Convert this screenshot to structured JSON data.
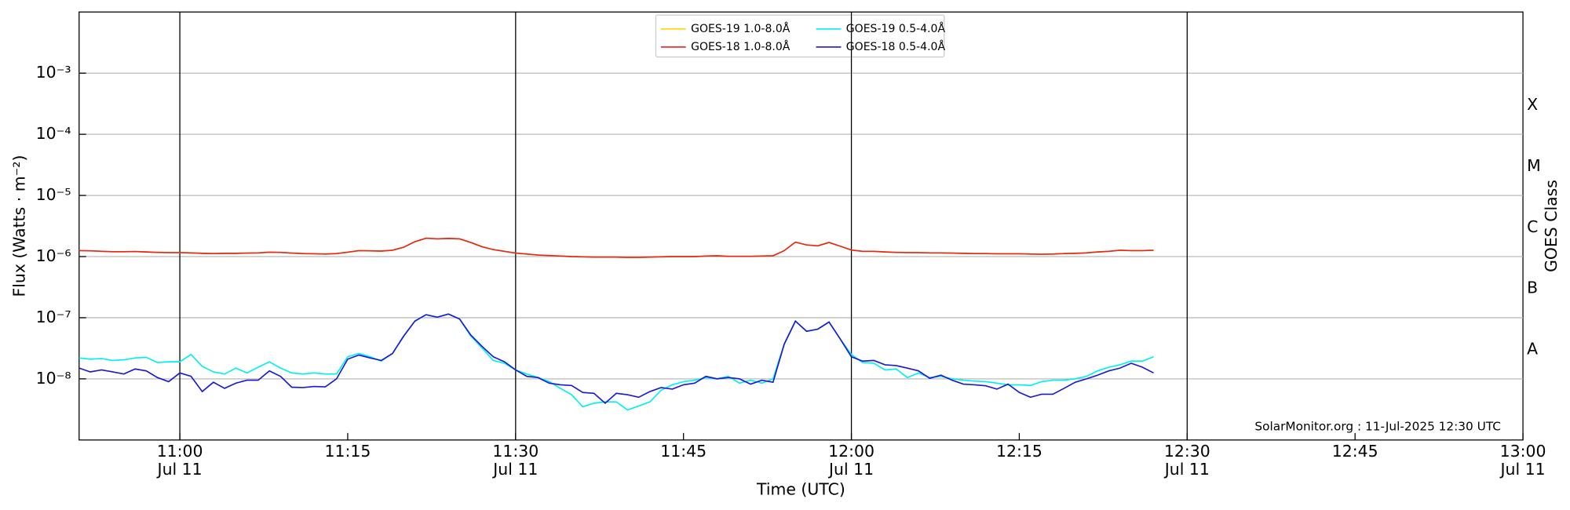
{
  "chart_data": {
    "type": "line",
    "y_label": "Flux (Watts · m⁻²)",
    "x_label": "Time (UTC)",
    "y2_label": "GOES Class",
    "annotation": "SolarMonitor.org : 11-Jul-2025 12:30 UTC",
    "log_y": true,
    "grid": true,
    "legend": "upper center",
    "x": [
      "10:51",
      "10:52",
      "10:53",
      "10:54",
      "10:55",
      "10:56",
      "10:57",
      "10:58",
      "10:59",
      "11:00",
      "11:01",
      "11:02",
      "11:03",
      "11:04",
      "11:05",
      "11:06",
      "11:07",
      "11:08",
      "11:09",
      "11:10",
      "11:11",
      "11:12",
      "11:13",
      "11:14",
      "11:15",
      "11:16",
      "11:17",
      "11:18",
      "11:19",
      "11:20",
      "11:21",
      "11:22",
      "11:23",
      "11:24",
      "11:25",
      "11:26",
      "11:27",
      "11:28",
      "11:29",
      "11:30",
      "11:31",
      "11:32",
      "11:33",
      "11:34",
      "11:35",
      "11:36",
      "11:37",
      "11:38",
      "11:39",
      "11:40",
      "11:41",
      "11:42",
      "11:43",
      "11:44",
      "11:45",
      "11:46",
      "11:47",
      "11:48",
      "11:49",
      "11:50",
      "11:51",
      "11:52",
      "11:53",
      "11:54",
      "11:55",
      "11:56",
      "11:57",
      "11:58",
      "11:59",
      "12:00",
      "12:01",
      "12:02",
      "12:03",
      "12:04",
      "12:05",
      "12:06",
      "12:07",
      "12:08",
      "12:09",
      "12:10",
      "12:11",
      "12:12",
      "12:13",
      "12:14",
      "12:15",
      "12:16",
      "12:17",
      "12:18",
      "12:19",
      "12:20",
      "12:21",
      "12:22",
      "12:23",
      "12:24",
      "12:25",
      "12:26",
      "12:27"
    ],
    "series": [
      {
        "name": "GOES-19 1.0-8.0Å",
        "color": "#ffd700",
        "values": [
          1.25e-06,
          1.24e-06,
          1.22e-06,
          1.2e-06,
          1.2e-06,
          1.21e-06,
          1.19e-06,
          1.17e-06,
          1.16e-06,
          1.16e-06,
          1.15e-06,
          1.13e-06,
          1.12e-06,
          1.13e-06,
          1.13e-06,
          1.14e-06,
          1.15e-06,
          1.18e-06,
          1.17e-06,
          1.14e-06,
          1.12e-06,
          1.11e-06,
          1.1e-06,
          1.12e-06,
          1.18e-06,
          1.25e-06,
          1.24e-06,
          1.23e-06,
          1.27e-06,
          1.42e-06,
          1.75e-06,
          2e-06,
          1.95e-06,
          1.98e-06,
          1.95e-06,
          1.7e-06,
          1.45e-06,
          1.3e-06,
          1.22e-06,
          1.14e-06,
          1.1e-06,
          1.06e-06,
          1.04e-06,
          1.02e-06,
          1e-06,
          9.9e-07,
          9.8e-07,
          9.8e-07,
          9.8e-07,
          9.7e-07,
          9.7e-07,
          9.8e-07,
          9.9e-07,
          1e-06,
          1e-06,
          1e-06,
          1.02e-06,
          1.03e-06,
          1.01e-06,
          1.01e-06,
          1.01e-06,
          1.02e-06,
          1.03e-06,
          1.25e-06,
          1.72e-06,
          1.55e-06,
          1.5e-06,
          1.7e-06,
          1.48e-06,
          1.28e-06,
          1.22e-06,
          1.22e-06,
          1.19e-06,
          1.17e-06,
          1.16e-06,
          1.16e-06,
          1.15e-06,
          1.15e-06,
          1.14e-06,
          1.13e-06,
          1.12e-06,
          1.12e-06,
          1.11e-06,
          1.11e-06,
          1.11e-06,
          1.1e-06,
          1.09e-06,
          1.1e-06,
          1.12e-06,
          1.13e-06,
          1.15e-06,
          1.19e-06,
          1.22e-06,
          1.27e-06,
          1.25e-06,
          1.25e-06,
          1.27e-06
        ]
      },
      {
        "name": "GOES-18 1.0-8.0Å",
        "color": "#e8251b",
        "values": [
          1.25e-06,
          1.24e-06,
          1.22e-06,
          1.2e-06,
          1.2e-06,
          1.21e-06,
          1.19e-06,
          1.17e-06,
          1.16e-06,
          1.16e-06,
          1.15e-06,
          1.13e-06,
          1.12e-06,
          1.13e-06,
          1.13e-06,
          1.14e-06,
          1.15e-06,
          1.18e-06,
          1.17e-06,
          1.14e-06,
          1.12e-06,
          1.11e-06,
          1.1e-06,
          1.12e-06,
          1.18e-06,
          1.25e-06,
          1.24e-06,
          1.23e-06,
          1.27e-06,
          1.42e-06,
          1.75e-06,
          2e-06,
          1.95e-06,
          1.98e-06,
          1.95e-06,
          1.7e-06,
          1.45e-06,
          1.3e-06,
          1.22e-06,
          1.14e-06,
          1.1e-06,
          1.06e-06,
          1.04e-06,
          1.02e-06,
          1e-06,
          9.9e-07,
          9.8e-07,
          9.8e-07,
          9.8e-07,
          9.7e-07,
          9.7e-07,
          9.8e-07,
          9.9e-07,
          1e-06,
          1e-06,
          1e-06,
          1.02e-06,
          1.03e-06,
          1.01e-06,
          1.01e-06,
          1.01e-06,
          1.02e-06,
          1.03e-06,
          1.25e-06,
          1.72e-06,
          1.55e-06,
          1.5e-06,
          1.7e-06,
          1.48e-06,
          1.28e-06,
          1.22e-06,
          1.22e-06,
          1.19e-06,
          1.17e-06,
          1.16e-06,
          1.16e-06,
          1.15e-06,
          1.15e-06,
          1.14e-06,
          1.13e-06,
          1.12e-06,
          1.12e-06,
          1.11e-06,
          1.11e-06,
          1.11e-06,
          1.1e-06,
          1.09e-06,
          1.1e-06,
          1.12e-06,
          1.13e-06,
          1.15e-06,
          1.19e-06,
          1.22e-06,
          1.27e-06,
          1.25e-06,
          1.25e-06,
          1.27e-06
        ]
      },
      {
        "name": "GOES-19 0.5-4.0Å",
        "color": "#00f0f0",
        "values": [
          2.2e-08,
          2.1e-08,
          2.15e-08,
          2e-08,
          2.05e-08,
          2.2e-08,
          2.25e-08,
          1.85e-08,
          1.9e-08,
          1.9e-08,
          2.5e-08,
          1.6e-08,
          1.3e-08,
          1.2e-08,
          1.5e-08,
          1.25e-08,
          1.55e-08,
          1.9e-08,
          1.5e-08,
          1.25e-08,
          1.2e-08,
          1.25e-08,
          1.2e-08,
          1.2e-08,
          2.3e-08,
          2.6e-08,
          2.3e-08,
          1.95e-08,
          2.6e-08,
          5e-08,
          8.8e-08,
          1.12e-07,
          1.02e-07,
          1.15e-07,
          9.5e-08,
          5e-08,
          3.2e-08,
          2e-08,
          1.8e-08,
          1.4e-08,
          1.2e-08,
          1.05e-08,
          9e-09,
          7e-09,
          5.5e-09,
          3.5e-09,
          4e-09,
          4.2e-09,
          4.2e-09,
          3.1e-09,
          3.6e-09,
          4.2e-09,
          6.5e-09,
          8e-09,
          9e-09,
          9.5e-09,
          1.05e-08,
          1e-08,
          1.1e-08,
          8.5e-09,
          9.5e-09,
          8.5e-09,
          1e-08,
          3.7e-08,
          8.8e-08,
          6e-08,
          6.5e-08,
          8.5e-08,
          4.5e-08,
          2.5e-08,
          1.85e-08,
          1.8e-08,
          1.4e-08,
          1.45e-08,
          1.05e-08,
          1.25e-08,
          1.05e-08,
          1.1e-08,
          1e-08,
          9.5e-09,
          9.2e-09,
          9e-09,
          8.5e-09,
          8e-09,
          8e-09,
          7.8e-09,
          9e-09,
          9.5e-09,
          9.5e-09,
          1e-08,
          1.1e-08,
          1.35e-08,
          1.55e-08,
          1.7e-08,
          1.95e-08,
          1.95e-08,
          2.3e-08
        ]
      },
      {
        "name": "GOES-18 0.5-4.0Å",
        "color": "#1a1ad6",
        "values": [
          1.5e-08,
          1.3e-08,
          1.4e-08,
          1.3e-08,
          1.2e-08,
          1.45e-08,
          1.35e-08,
          1.05e-08,
          9e-09,
          1.25e-08,
          1.1e-08,
          6.2e-09,
          8.8e-09,
          7e-09,
          8.5e-09,
          9.5e-09,
          9.5e-09,
          1.35e-08,
          1.1e-08,
          7.3e-09,
          7.2e-09,
          7.5e-09,
          7.4e-09,
          1e-08,
          2.1e-08,
          2.45e-08,
          2.2e-08,
          2e-08,
          2.6e-08,
          5e-08,
          8.8e-08,
          1.12e-07,
          1.02e-07,
          1.15e-07,
          9.5e-08,
          5.2e-08,
          3.4e-08,
          2.3e-08,
          1.9e-08,
          1.4e-08,
          1.1e-08,
          1.05e-08,
          8.5e-09,
          8e-09,
          7.8e-09,
          6e-09,
          5.8e-09,
          4e-09,
          5.8e-09,
          5.5e-09,
          5e-09,
          6.2e-09,
          7.2e-09,
          6.8e-09,
          8e-09,
          8.5e-09,
          1.1e-08,
          1e-08,
          1.05e-08,
          1e-08,
          8.2e-09,
          9.5e-09,
          8.8e-09,
          3.7e-08,
          8.8e-08,
          6e-08,
          6.5e-08,
          8.5e-08,
          4.5e-08,
          2.3e-08,
          1.95e-08,
          2e-08,
          1.7e-08,
          1.65e-08,
          1.5e-08,
          1.35e-08,
          1.02e-08,
          1.15e-08,
          9.5e-09,
          8.2e-09,
          8e-09,
          7.7e-09,
          6.8e-09,
          8.2e-09,
          6e-09,
          5e-09,
          5.6e-09,
          5.6e-09,
          7e-09,
          8.8e-09,
          1e-08,
          1.15e-08,
          1.35e-08,
          1.5e-08,
          1.8e-08,
          1.55e-08,
          1.25e-08
        ]
      }
    ],
    "xlim": [
      "10:51",
      "13:00"
    ],
    "xticks": [
      {
        "value": "11:00",
        "label": "11:00",
        "date": "Jul 11"
      },
      {
        "value": "11:15",
        "label": "11:15"
      },
      {
        "value": "11:30",
        "label": "11:30",
        "date": "Jul 11"
      },
      {
        "value": "11:45",
        "label": "11:45"
      },
      {
        "value": "12:00",
        "label": "12:00",
        "date": "Jul 11"
      },
      {
        "value": "12:15",
        "label": "12:15"
      },
      {
        "value": "12:30",
        "label": "12:30",
        "date": "Jul 11"
      },
      {
        "value": "12:45",
        "label": "12:45"
      },
      {
        "value": "13:00",
        "label": "13:00",
        "date": "Jul 11"
      }
    ],
    "vlines": [
      "11:00",
      "11:30",
      "12:00",
      "12:30"
    ],
    "ylim": [
      1e-09,
      0.01
    ],
    "yticks": [
      {
        "value": 1e-08,
        "label": "10⁻⁸"
      },
      {
        "value": 1e-07,
        "label": "10⁻⁷"
      },
      {
        "value": 1e-06,
        "label": "10⁻⁶"
      },
      {
        "value": 1e-05,
        "label": "10⁻⁵"
      },
      {
        "value": 0.0001,
        "label": "10⁻⁴"
      },
      {
        "value": 0.001,
        "label": "10⁻³"
      }
    ],
    "y2lim": [
      1e-09,
      0.01
    ],
    "y2ticks": [
      {
        "value": 3e-08,
        "label": "A"
      },
      {
        "value": 3e-07,
        "label": "B"
      },
      {
        "value": 3e-06,
        "label": "C"
      },
      {
        "value": 3e-05,
        "label": "M"
      },
      {
        "value": 0.0003,
        "label": "X"
      }
    ]
  }
}
